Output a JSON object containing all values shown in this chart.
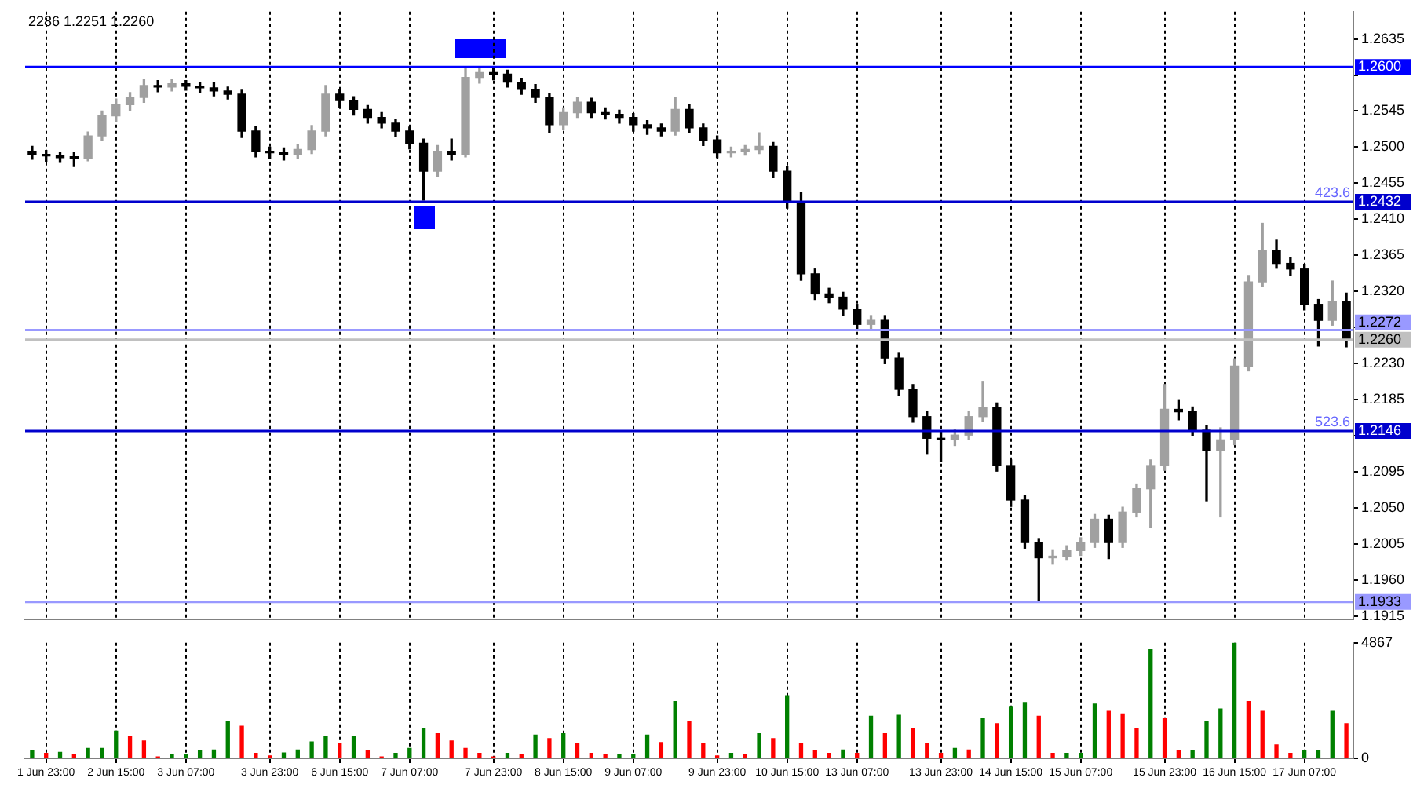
{
  "chart_data": [
    {
      "type": "candlestick",
      "annotations": [
        "2286 1.2251 1.2260",
        {
          "text": "423.6",
          "y": 1.2432
        },
        {
          "text": "523.6",
          "y": 1.2146
        }
      ],
      "categories": [
        null,
        null,
        null,
        null,
        null,
        null,
        null,
        null,
        null,
        null,
        null,
        null,
        null,
        null,
        null,
        null,
        null,
        null,
        null,
        null,
        null,
        null,
        null,
        null,
        null,
        null,
        null,
        null,
        null,
        null,
        null,
        null,
        null,
        null,
        null,
        null,
        null,
        null,
        null,
        null,
        null,
        null,
        null,
        null,
        null,
        null,
        null,
        null,
        null,
        null,
        null,
        null,
        null,
        null,
        null,
        null,
        null,
        null,
        null,
        null,
        null,
        null,
        null,
        null,
        null,
        null,
        null,
        null,
        null,
        null,
        null,
        null,
        null,
        null,
        null,
        null,
        null,
        null,
        null,
        null,
        null,
        null,
        null,
        null,
        null,
        null,
        null,
        null,
        null,
        null,
        null,
        null,
        null,
        null,
        null
      ],
      "ohlc": [
        [
          1.2495,
          1.2501,
          1.2485,
          1.2491
        ],
        [
          1.2491,
          1.2496,
          1.2482,
          1.2489
        ],
        [
          1.2489,
          1.2494,
          1.2481,
          1.2487
        ],
        [
          1.2487,
          1.2493,
          1.2476,
          1.2486
        ],
        [
          1.2486,
          1.2519,
          1.2483,
          1.2514
        ],
        [
          1.2514,
          1.2545,
          1.2509,
          1.2539
        ],
        [
          1.2539,
          1.256,
          1.2532,
          1.2553
        ],
        [
          1.2553,
          1.2568,
          1.2546,
          1.2562
        ],
        [
          1.2562,
          1.2584,
          1.2556,
          1.2577
        ],
        [
          1.2577,
          1.2583,
          1.2569,
          1.2575
        ],
        [
          1.2575,
          1.2584,
          1.257,
          1.2579
        ],
        [
          1.2579,
          1.2583,
          1.2571,
          1.2576
        ],
        [
          1.2576,
          1.2581,
          1.2568,
          1.2574
        ],
        [
          1.2574,
          1.258,
          1.2564,
          1.257
        ],
        [
          1.257,
          1.2575,
          1.256,
          1.2566
        ],
        [
          1.2566,
          1.2571,
          1.2512,
          1.252
        ],
        [
          1.252,
          1.2526,
          1.2488,
          1.2495
        ],
        [
          1.2495,
          1.25,
          1.2486,
          1.2493
        ],
        [
          1.2493,
          1.2499,
          1.2484,
          1.2491
        ],
        [
          1.2491,
          1.2503,
          1.2486,
          1.2497
        ],
        [
          1.2497,
          1.2527,
          1.2492,
          1.252
        ],
        [
          1.252,
          1.2577,
          1.2514,
          1.2566
        ],
        [
          1.2566,
          1.2572,
          1.255,
          1.2558
        ],
        [
          1.2558,
          1.2563,
          1.254,
          1.2547
        ],
        [
          1.2547,
          1.2552,
          1.253,
          1.2537
        ],
        [
          1.2537,
          1.2543,
          1.2524,
          1.253
        ],
        [
          1.253,
          1.2535,
          1.2513,
          1.252
        ],
        [
          1.252,
          1.2525,
          1.2498,
          1.2505
        ],
        [
          1.2505,
          1.251,
          1.2434,
          1.247
        ],
        [
          1.247,
          1.2502,
          1.2463,
          1.2495
        ],
        [
          1.2495,
          1.251,
          1.2484,
          1.2491
        ],
        [
          1.2491,
          1.26,
          1.2488,
          1.2587
        ],
        [
          1.2587,
          1.2599,
          1.258,
          1.2593
        ],
        [
          1.2593,
          1.2599,
          1.2584,
          1.2591
        ],
        [
          1.2591,
          1.2596,
          1.2575,
          1.2581
        ],
        [
          1.2581,
          1.2586,
          1.2566,
          1.2572
        ],
        [
          1.2572,
          1.2578,
          1.2556,
          1.2562
        ],
        [
          1.2562,
          1.2567,
          1.2518,
          1.2528
        ],
        [
          1.2528,
          1.2549,
          1.2522,
          1.2543
        ],
        [
          1.2543,
          1.2562,
          1.2537,
          1.2556
        ],
        [
          1.2556,
          1.2561,
          1.2537,
          1.2543
        ],
        [
          1.2543,
          1.2549,
          1.2535,
          1.2541
        ],
        [
          1.2541,
          1.2546,
          1.253,
          1.2537
        ],
        [
          1.2537,
          1.2542,
          1.252,
          1.2528
        ],
        [
          1.2528,
          1.2533,
          1.2516,
          1.2524
        ],
        [
          1.2524,
          1.2529,
          1.2514,
          1.252
        ],
        [
          1.252,
          1.2562,
          1.2515,
          1.2547
        ],
        [
          1.2547,
          1.2553,
          1.2518,
          1.2524
        ],
        [
          1.2524,
          1.2529,
          1.2502,
          1.2509
        ],
        [
          1.2509,
          1.2514,
          1.2487,
          1.2493
        ],
        [
          1.2493,
          1.25,
          1.2488,
          1.2495
        ],
        [
          1.2495,
          1.2502,
          1.249,
          1.2497
        ],
        [
          1.2497,
          1.2518,
          1.2492,
          1.2501
        ],
        [
          1.2501,
          1.2506,
          1.2462,
          1.247
        ],
        [
          1.247,
          1.2476,
          1.2424,
          1.2432
        ],
        [
          1.2432,
          1.2444,
          1.2334,
          1.2342
        ],
        [
          1.2342,
          1.2348,
          1.231,
          1.2317
        ],
        [
          1.2317,
          1.2324,
          1.2306,
          1.2313
        ],
        [
          1.2313,
          1.2319,
          1.229,
          1.2298
        ],
        [
          1.2298,
          1.2304,
          1.2272,
          1.2279
        ],
        [
          1.2279,
          1.229,
          1.2273,
          1.2284
        ],
        [
          1.2284,
          1.229,
          1.223,
          1.2237
        ],
        [
          1.2237,
          1.2243,
          1.219,
          1.2198
        ],
        [
          1.2198,
          1.2204,
          1.2157,
          1.2164
        ],
        [
          1.2164,
          1.217,
          1.2118,
          1.2137
        ],
        [
          1.2137,
          1.2145,
          1.2108,
          1.2135
        ],
        [
          1.2135,
          1.2148,
          1.2128,
          1.2141
        ],
        [
          1.2141,
          1.217,
          1.2135,
          1.2164
        ],
        [
          1.2164,
          1.2208,
          1.2158,
          1.2175
        ],
        [
          1.2175,
          1.2181,
          1.2096,
          1.2103
        ],
        [
          1.2103,
          1.211,
          1.2052,
          1.206
        ],
        [
          1.206,
          1.2066,
          1.2,
          1.2007
        ],
        [
          1.2007,
          1.2012,
          1.1934,
          1.1988
        ],
        [
          1.1988,
          1.1998,
          1.198,
          1.199
        ],
        [
          1.199,
          1.2003,
          1.1985,
          1.1997
        ],
        [
          1.1997,
          1.2013,
          1.1991,
          1.2007
        ],
        [
          1.2007,
          1.2042,
          1.2001,
          1.2036
        ],
        [
          1.2036,
          1.2041,
          1.1987,
          1.2007
        ],
        [
          1.2007,
          1.2051,
          1.2001,
          1.2045
        ],
        [
          1.2045,
          1.208,
          1.2039,
          1.2074
        ],
        [
          1.2074,
          1.211,
          1.2026,
          1.2103
        ],
        [
          1.2103,
          1.2204,
          1.2097,
          1.2173
        ],
        [
          1.2173,
          1.2185,
          1.216,
          1.217
        ],
        [
          1.217,
          1.2176,
          1.214,
          1.2147
        ],
        [
          1.2147,
          1.2153,
          1.2059,
          1.2122
        ],
        [
          1.2122,
          1.215,
          1.2039,
          1.2135
        ],
        [
          1.2135,
          1.2236,
          1.2129,
          1.2227
        ],
        [
          1.2227,
          1.234,
          1.2221,
          1.2332
        ],
        [
          1.2332,
          1.2405,
          1.2326,
          1.2371
        ],
        [
          1.2371,
          1.2384,
          1.2349,
          1.2355
        ],
        [
          1.2355,
          1.2362,
          1.234,
          1.2348
        ],
        [
          1.2348,
          1.2354,
          1.2297,
          1.2304
        ],
        [
          1.2304,
          1.231,
          1.2252,
          1.2284
        ],
        [
          1.2284,
          1.2333,
          1.2278,
          1.2307
        ],
        [
          1.2307,
          1.2318,
          1.2251,
          1.226
        ]
      ],
      "colors": [
        "#000000",
        "#000000",
        "#000000",
        "#000000",
        "#a0a0a0",
        "#a0a0a0",
        "#a0a0a0",
        "#a0a0a0",
        "#a0a0a0",
        "#000000",
        "#a0a0a0",
        "#000000",
        "#000000",
        "#000000",
        "#000000",
        "#000000",
        "#000000",
        "#000000",
        "#000000",
        "#a0a0a0",
        "#a0a0a0",
        "#a0a0a0",
        "#000000",
        "#000000",
        "#000000",
        "#000000",
        "#000000",
        "#000000",
        "#000000",
        "#a0a0a0",
        "#000000",
        "#a0a0a0",
        "#a0a0a0",
        "#000000",
        "#000000",
        "#000000",
        "#000000",
        "#000000",
        "#a0a0a0",
        "#a0a0a0",
        "#000000",
        "#000000",
        "#000000",
        "#000000",
        "#000000",
        "#000000",
        "#a0a0a0",
        "#000000",
        "#000000",
        "#000000",
        "#a0a0a0",
        "#a0a0a0",
        "#a0a0a0",
        "#000000",
        "#000000",
        "#000000",
        "#000000",
        "#000000",
        "#000000",
        "#000000",
        "#a0a0a0",
        "#000000",
        "#000000",
        "#000000",
        "#000000",
        "#000000",
        "#a0a0a0",
        "#a0a0a0",
        "#a0a0a0",
        "#000000",
        "#000000",
        "#000000",
        "#000000",
        "#a0a0a0",
        "#a0a0a0",
        "#a0a0a0",
        "#a0a0a0",
        "#000000",
        "#a0a0a0",
        "#a0a0a0",
        "#a0a0a0",
        "#a0a0a0",
        "#000000",
        "#000000",
        "#000000",
        "#a0a0a0",
        "#a0a0a0",
        "#a0a0a0",
        "#a0a0a0",
        "#000000",
        "#000000",
        "#000000",
        "#000000",
        "#a0a0a0",
        "#000000"
      ],
      "ylim": [
        1.1911,
        1.2669
      ],
      "yticks": [
        1.1915,
        {
          "value": 1.196,
          "label": "1.1960"
        },
        1.2005,
        {
          "value": 1.205,
          "label": "1.2050"
        },
        1.2095,
        {
          "value": 1.214,
          "label": null
        },
        1.2185,
        {
          "value": 1.223,
          "label": "1.2230"
        },
        {
          "value": 1.2275,
          "label": null
        },
        {
          "value": 1.232,
          "label": "1.2320"
        },
        1.2365,
        {
          "value": 1.241,
          "label": "1.2410"
        },
        1.2455,
        {
          "value": 1.25,
          "label": "1.2500"
        },
        1.2545,
        {
          "value": 1.259,
          "label": null
        },
        1.2635
      ],
      "tick_labels": "y",
      "grid": "x",
      "ref_lines": [
        {
          "axis": "y",
          "value": 1.26,
          "label": "1.2600",
          "color": "#0000ff"
        },
        {
          "axis": "y",
          "value": 1.2432,
          "label": "1.2432",
          "color": "#0000cd"
        },
        {
          "axis": "y",
          "value": 1.2272,
          "label": "1.2272",
          "color": "#9999ff"
        },
        {
          "axis": "y",
          "value": 1.226,
          "label": "1.2260",
          "color": "#c0c0c0"
        },
        {
          "axis": "y",
          "value": 1.2146,
          "label": "1.2146",
          "color": "#0000cd"
        },
        {
          "axis": "y",
          "value": 1.1933,
          "label": "1.1933",
          "color": "#9999ff"
        }
      ]
    },
    {
      "type": "bar",
      "categories": [
        null,
        "1 Jun 23:00",
        null,
        null,
        null,
        null,
        "2 Jun 15:00",
        null,
        null,
        null,
        null,
        "3 Jun 07:00",
        null,
        null,
        null,
        null,
        null,
        "3 Jun 23:00",
        null,
        null,
        null,
        null,
        "6 Jun 15:00",
        null,
        null,
        null,
        null,
        "7 Jun 07:00",
        null,
        null,
        null,
        null,
        null,
        "7 Jun 23:00",
        null,
        null,
        null,
        null,
        "8 Jun 15:00",
        null,
        null,
        null,
        null,
        "9 Jun 07:00",
        null,
        null,
        null,
        null,
        null,
        "9 Jun 23:00",
        null,
        null,
        null,
        null,
        "10 Jun 15:00",
        null,
        null,
        null,
        null,
        "13 Jun 07:00",
        null,
        null,
        null,
        null,
        null,
        "13 Jun 23:00",
        null,
        null,
        null,
        null,
        "14 Jun 15:00",
        null,
        null,
        null,
        null,
        "15 Jun 07:00",
        null,
        null,
        null,
        null,
        null,
        "15 Jun 23:00",
        null,
        null,
        null,
        null,
        "16 Jun 15:00",
        null,
        null,
        null,
        null,
        "17 Jun 07:00",
        null,
        null,
        null
      ],
      "values": [
        312,
        208,
        250,
        146,
        416,
        416,
        1144,
        936,
        728,
        62,
        146,
        146,
        312,
        354,
        1560,
        1352,
        208,
        104,
        229,
        354,
        686,
        936,
        624,
        936,
        312,
        62,
        208,
        416,
        1248,
        1040,
        728,
        416,
        208,
        62,
        208,
        146,
        978,
        832,
        1040,
        624,
        208,
        146,
        146,
        146,
        978,
        666,
        2392,
        1560,
        624,
        104,
        208,
        146,
        1040,
        832,
        2642,
        624,
        312,
        208,
        354,
        208,
        1768,
        1040,
        1810,
        1248,
        624,
        208,
        416,
        354,
        1664,
        1456,
        2184,
        2350,
        1768,
        208,
        208,
        208,
        2288,
        1976,
        1872,
        1248,
        4576,
        1664,
        312,
        312,
        1560,
        2080,
        4867,
        2392,
        1976,
        562,
        208,
        312,
        312,
        1976,
        1456
      ],
      "colors": [
        "#008000",
        "#ff0000",
        "#008000",
        "#ff0000",
        "#008000",
        "#008000",
        "#008000",
        "#ff0000",
        "#ff0000",
        "#ff0000",
        "#008000",
        "#008000",
        "#008000",
        "#008000",
        "#008000",
        "#ff0000",
        "#ff0000",
        "#ff0000",
        "#008000",
        "#008000",
        "#008000",
        "#008000",
        "#ff0000",
        "#008000",
        "#ff0000",
        "#ff0000",
        "#008000",
        "#008000",
        "#008000",
        "#ff0000",
        "#ff0000",
        "#ff0000",
        "#ff0000",
        "#ff0000",
        "#008000",
        "#ff0000",
        "#008000",
        "#ff0000",
        "#008000",
        "#ff0000",
        "#ff0000",
        "#ff0000",
        "#008000",
        "#008000",
        "#008000",
        "#ff0000",
        "#008000",
        "#ff0000",
        "#ff0000",
        "#ff0000",
        "#008000",
        "#ff0000",
        "#008000",
        "#ff0000",
        "#008000",
        "#ff0000",
        "#ff0000",
        "#ff0000",
        "#008000",
        "#ff0000",
        "#008000",
        "#ff0000",
        "#008000",
        "#ff0000",
        "#ff0000",
        "#ff0000",
        "#008000",
        "#ff0000",
        "#008000",
        "#ff0000",
        "#008000",
        "#008000",
        "#ff0000",
        "#ff0000",
        "#008000",
        "#008000",
        "#008000",
        "#ff0000",
        "#ff0000",
        "#ff0000",
        "#008000",
        "#ff0000",
        "#ff0000",
        "#008000",
        "#008000",
        "#008000",
        "#008000",
        "#ff0000",
        "#ff0000",
        "#ff0000",
        "#ff0000",
        "#008000",
        "#008000",
        "#008000",
        "#ff0000"
      ],
      "ylim": [
        0,
        4867
      ],
      "yticks": [
        0,
        4867
      ],
      "grid": "x"
    }
  ]
}
